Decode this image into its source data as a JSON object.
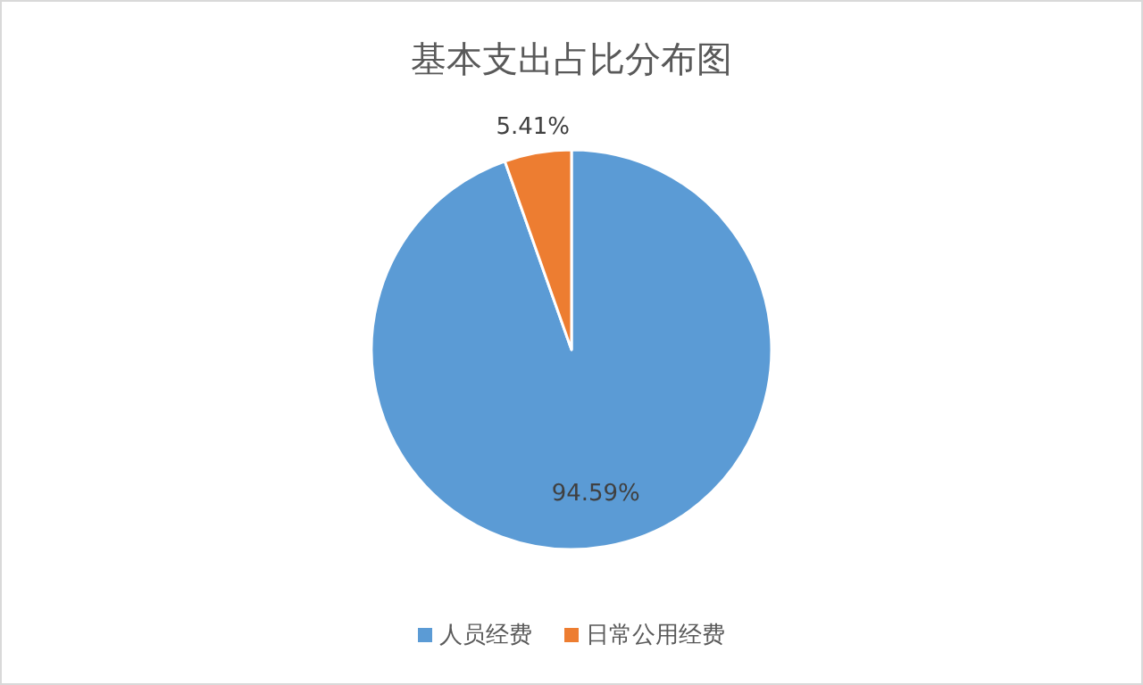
{
  "chart_data": {
    "type": "pie",
    "title": "基本支出占比分布图",
    "categories": [
      "人员经费",
      "日常公用经费"
    ],
    "values": [
      94.59,
      5.41
    ],
    "colors": [
      "#5b9bd5",
      "#ed7d31"
    ],
    "value_labels": [
      "94.59%",
      "5.41%"
    ],
    "legend": "bottom"
  }
}
